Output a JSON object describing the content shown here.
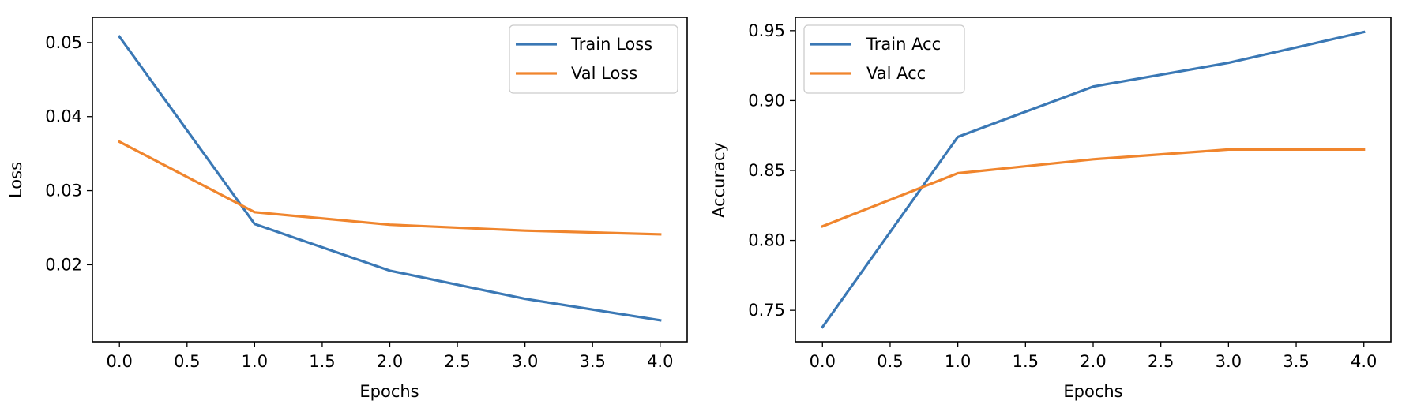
{
  "chart_data": [
    {
      "type": "line",
      "xlabel": "Epochs",
      "ylabel": "Loss",
      "xlim": [
        -0.2,
        4.2
      ],
      "ylim": [
        0.0096,
        0.0534
      ],
      "xticks": [
        0.0,
        0.5,
        1.0,
        1.5,
        2.0,
        2.5,
        3.0,
        3.5,
        4.0
      ],
      "xtick_labels": [
        "0.0",
        "0.5",
        "1.0",
        "1.5",
        "2.0",
        "2.5",
        "3.0",
        "3.5",
        "4.0"
      ],
      "yticks": [
        0.02,
        0.03,
        0.04,
        0.05
      ],
      "ytick_labels": [
        "0.02",
        "0.03",
        "0.04",
        "0.05"
      ],
      "x": [
        0,
        1,
        2,
        3,
        4
      ],
      "series": [
        {
          "name": "Train Loss",
          "color": "#3a78b5",
          "values": [
            0.0508,
            0.0255,
            0.0192,
            0.0154,
            0.0125
          ]
        },
        {
          "name": "Val Loss",
          "color": "#f0852d",
          "values": [
            0.0366,
            0.0271,
            0.0254,
            0.0246,
            0.0241
          ]
        }
      ],
      "legend": "upper right",
      "grid": false
    },
    {
      "type": "line",
      "xlabel": "Epochs",
      "ylabel": "Accuracy",
      "xlim": [
        -0.2,
        4.2
      ],
      "ylim": [
        0.7275,
        0.9595
      ],
      "xticks": [
        0.0,
        0.5,
        1.0,
        1.5,
        2.0,
        2.5,
        3.0,
        3.5,
        4.0
      ],
      "xtick_labels": [
        "0.0",
        "0.5",
        "1.0",
        "1.5",
        "2.0",
        "2.5",
        "3.0",
        "3.5",
        "4.0"
      ],
      "yticks": [
        0.75,
        0.8,
        0.85,
        0.9,
        0.95
      ],
      "ytick_labels": [
        "0.75",
        "0.80",
        "0.85",
        "0.90",
        "0.95"
      ],
      "x": [
        0,
        1,
        2,
        3,
        4
      ],
      "series": [
        {
          "name": "Train Acc",
          "color": "#3a78b5",
          "values": [
            0.738,
            0.874,
            0.91,
            0.927,
            0.949
          ]
        },
        {
          "name": "Val Acc",
          "color": "#f0852d",
          "values": [
            0.81,
            0.848,
            0.858,
            0.865,
            0.865
          ]
        }
      ],
      "legend": "upper left",
      "grid": false
    }
  ]
}
